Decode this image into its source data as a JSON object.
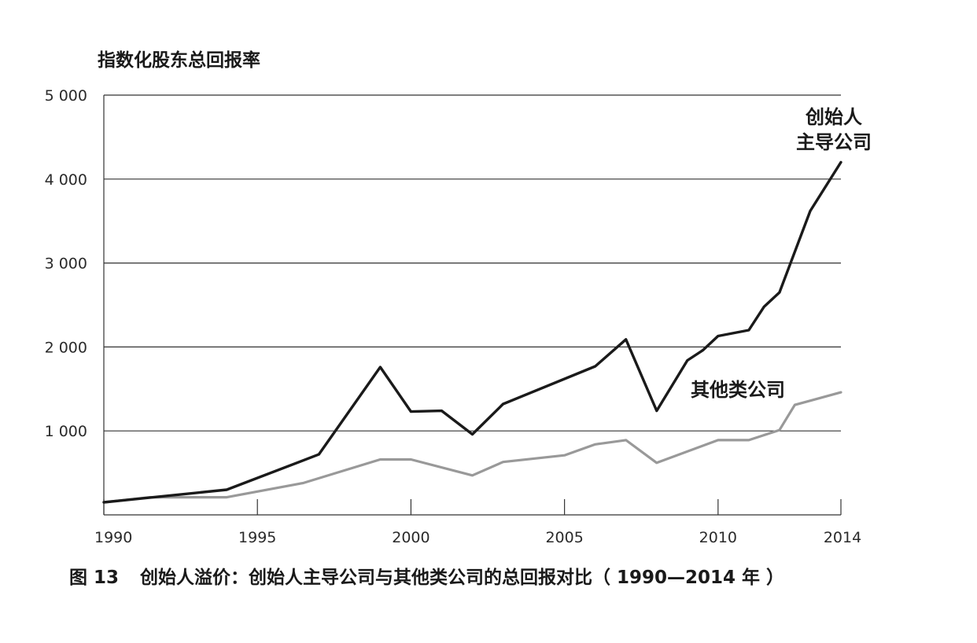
{
  "caption": {
    "figure_no": "图 13",
    "text": "创始人溢价：创始人主导公司与其他类公司的总回报对比（ 1990—2014 年 ）"
  },
  "chart_data": {
    "type": "line",
    "ylabel": "指数化股东总回报率",
    "xlabel": "",
    "xlim": [
      1990,
      2014
    ],
    "ylim": [
      0,
      5000
    ],
    "y_ticks": [
      1000,
      2000,
      3000,
      4000,
      5000
    ],
    "y_tick_labels": [
      "1 000",
      "2 000",
      "3 000",
      "4 000",
      "5 000"
    ],
    "x_ticks": [
      1990,
      1995,
      2000,
      2005,
      2010,
      2014
    ],
    "x_tick_labels": [
      "1990",
      "1995",
      "2000",
      "2005",
      "2010",
      "2014"
    ],
    "grid": "horizontal",
    "series": [
      {
        "name": "创始人主导公司",
        "label_lines": [
          "创始人",
          "主导公司"
        ],
        "color": "#1a1a1a",
        "x": [
          1990,
          1994,
          1997,
          1999,
          2000,
          2001,
          2002,
          2003,
          2006,
          2007,
          2008,
          2009,
          2009.5,
          2010,
          2011,
          2011.5,
          2012,
          2013,
          2014
        ],
        "y": [
          150,
          300,
          720,
          1760,
          1230,
          1240,
          960,
          1320,
          1770,
          2090,
          1240,
          1840,
          1960,
          2130,
          2200,
          2480,
          2650,
          3620,
          4200
        ]
      },
      {
        "name": "其他类公司",
        "label_lines": [
          "其他类公司"
        ],
        "color": "#999999",
        "x": [
          1990,
          1991.5,
          1994,
          1996.5,
          1999,
          2000,
          2002,
          2003,
          2005,
          2006,
          2007,
          2008,
          2010,
          2011,
          2012,
          2012.5,
          2014
        ],
        "y": [
          150,
          210,
          210,
          380,
          660,
          660,
          470,
          630,
          710,
          840,
          890,
          620,
          890,
          890,
          1010,
          1310,
          1460
        ]
      }
    ]
  }
}
